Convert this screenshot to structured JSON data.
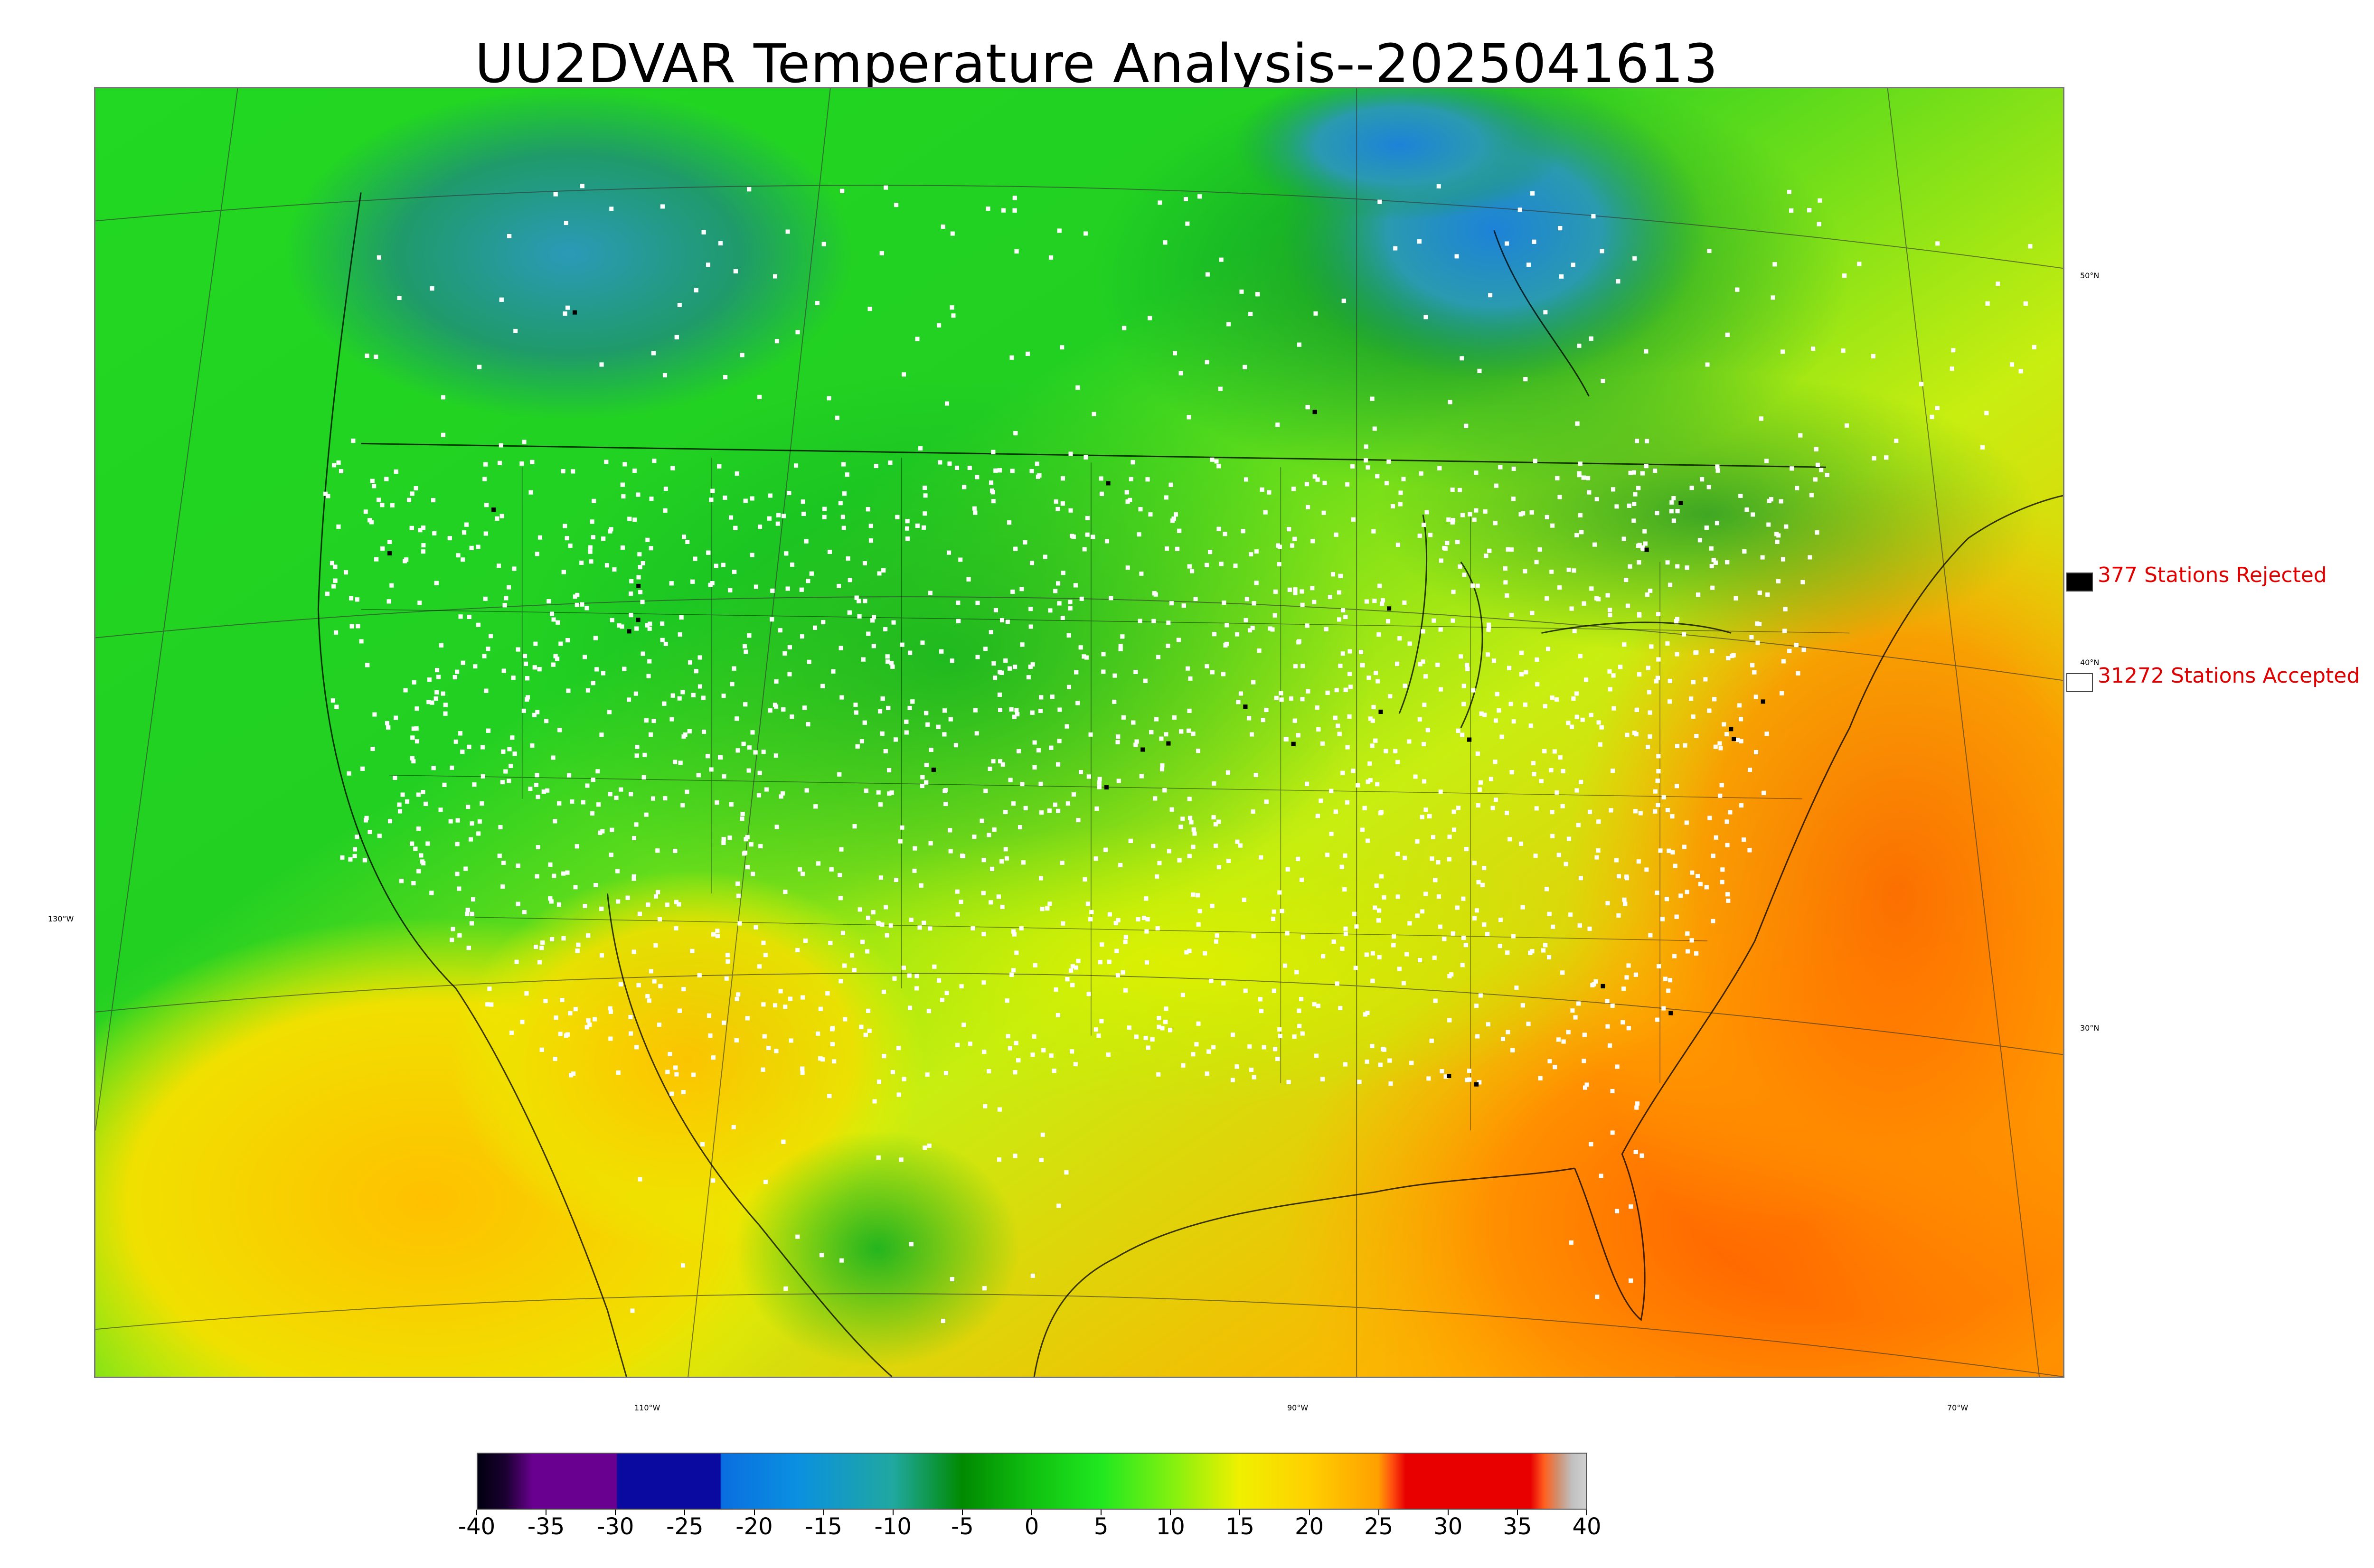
{
  "title": "UU2DVAR Temperature Analysis--2025041613",
  "map": {
    "lat_labels": [
      "50°N",
      "40°N",
      "30°N"
    ],
    "lon_labels": [
      "130°W",
      "110°W",
      "90°W",
      "70°W"
    ]
  },
  "legend": {
    "rejected": {
      "label": "377 Stations Rejected",
      "count": 377,
      "color": "#000000"
    },
    "accepted": {
      "label": "31272 Stations Accepted",
      "count": 31272,
      "color": "#ffffff"
    }
  },
  "colorbar": {
    "ticks": [
      "-40",
      "-35",
      "-30",
      "-25",
      "-20",
      "-15",
      "-10",
      "-5",
      "0",
      "5",
      "10",
      "15",
      "20",
      "25",
      "30",
      "35",
      "40"
    ],
    "min": -40,
    "max": 40,
    "stops": [
      {
        "value": -40,
        "color": "#000010"
      },
      {
        "value": -38,
        "color": "#1a0030"
      },
      {
        "value": -36,
        "color": "#6a0090"
      },
      {
        "value": -30,
        "color": "#6a0090"
      },
      {
        "value": -29.9,
        "color": "#0a0aa0"
      },
      {
        "value": -22.5,
        "color": "#0a0aa0"
      },
      {
        "value": -22.4,
        "color": "#0a6ee0"
      },
      {
        "value": -17,
        "color": "#0a90e0"
      },
      {
        "value": -10,
        "color": "#20a8a0"
      },
      {
        "value": -5,
        "color": "#008a00"
      },
      {
        "value": 0,
        "color": "#10c010"
      },
      {
        "value": 5,
        "color": "#20e820"
      },
      {
        "value": 10,
        "color": "#80f010"
      },
      {
        "value": 15,
        "color": "#f0f000"
      },
      {
        "value": 20,
        "color": "#ffd000"
      },
      {
        "value": 25,
        "color": "#ffa000"
      },
      {
        "value": 26,
        "color": "#ff5010"
      },
      {
        "value": 27,
        "color": "#e80000"
      },
      {
        "value": 36,
        "color": "#e80000"
      },
      {
        "value": 37,
        "color": "#ff6020"
      },
      {
        "value": 38,
        "color": "#d09070"
      },
      {
        "value": 39,
        "color": "#c0c0c0"
      },
      {
        "value": 40,
        "color": "#d0d0d0"
      }
    ]
  },
  "colors": {
    "ocean_warm": "#ff9a00",
    "ocean_mid": "#ffd000",
    "land_green": "#22d022",
    "cold_north": "#1a8a5a",
    "cold_blue": "#2a8ac8"
  }
}
